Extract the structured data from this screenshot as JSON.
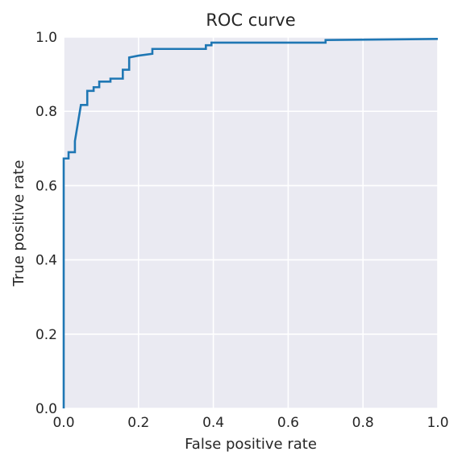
{
  "chart_data": {
    "type": "line",
    "title": "ROC curve",
    "xlabel": "False positive rate",
    "ylabel": "True positive rate",
    "xlim": [
      0.0,
      1.0
    ],
    "ylim": [
      0.0,
      1.0
    ],
    "grid": true,
    "style": "seaborn-darkgrid",
    "colors": {
      "plot_background": "#eaeaf2",
      "grid": "#ffffff",
      "line": "#1f77b4",
      "text": "#262626"
    },
    "x_ticks": [
      0.0,
      0.2,
      0.4,
      0.6,
      0.8,
      1.0
    ],
    "y_ticks": [
      0.0,
      0.2,
      0.4,
      0.6,
      0.8,
      1.0
    ],
    "x_tick_labels": [
      "0.0",
      "0.2",
      "0.4",
      "0.6",
      "0.8",
      "1.0"
    ],
    "y_tick_labels": [
      "0.0",
      "0.2",
      "0.4",
      "0.6",
      "0.8",
      "1.0"
    ],
    "series": [
      {
        "x": [
          0.0,
          0.0,
          0.013,
          0.013,
          0.03,
          0.03,
          0.046,
          0.06,
          0.063,
          0.063,
          0.08,
          0.08,
          0.095,
          0.095,
          0.125,
          0.125,
          0.158,
          0.158,
          0.175,
          0.175,
          0.2,
          0.237,
          0.237,
          0.38,
          0.38,
          0.395,
          0.395,
          0.7,
          0.7,
          1.0
        ],
        "y": [
          0.0,
          0.673,
          0.673,
          0.69,
          0.69,
          0.72,
          0.817,
          0.817,
          0.817,
          0.855,
          0.855,
          0.865,
          0.865,
          0.88,
          0.88,
          0.888,
          0.888,
          0.912,
          0.912,
          0.945,
          0.95,
          0.955,
          0.968,
          0.968,
          0.978,
          0.978,
          0.985,
          0.985,
          0.992,
          0.995
        ]
      }
    ]
  }
}
